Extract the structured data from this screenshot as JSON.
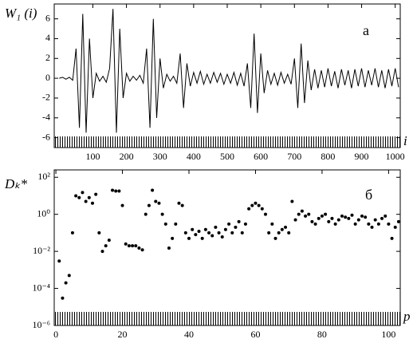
{
  "chart_data": [
    {
      "type": "line",
      "panel_label": "а",
      "ylabel": "W₁ (i)",
      "xlabel": "i",
      "color": "#000000",
      "x": [
        0,
        10,
        20,
        30,
        40,
        50,
        60,
        70,
        80,
        90,
        100,
        110,
        120,
        130,
        140,
        150,
        160,
        170,
        180,
        190,
        200,
        210,
        220,
        230,
        240,
        250,
        260,
        270,
        280,
        290,
        300,
        310,
        320,
        330,
        340,
        350,
        360,
        370,
        380,
        390,
        400,
        410,
        420,
        430,
        440,
        450,
        460,
        470,
        480,
        490,
        500,
        510,
        520,
        530,
        540,
        550,
        560,
        570,
        580,
        590,
        600,
        610,
        620,
        630,
        640,
        650,
        660,
        670,
        680,
        690,
        700,
        710,
        720,
        730,
        740,
        750,
        760,
        770,
        780,
        790,
        800,
        810,
        820,
        830,
        840,
        850,
        860,
        870,
        880,
        890,
        900,
        910,
        920,
        930,
        940,
        950,
        960,
        970,
        980,
        990,
        1000,
        1010
      ],
      "values": [
        0,
        0.1,
        -0.1,
        0.1,
        -0.2,
        3,
        -5,
        6.5,
        -5.5,
        4,
        -2,
        0.5,
        -0.3,
        0.2,
        -0.4,
        1,
        7,
        -5.5,
        5,
        -2,
        0.5,
        -0.3,
        0.2,
        -0.2,
        0.3,
        -0.5,
        3,
        -5,
        6,
        -4,
        2,
        -1,
        0.4,
        -0.3,
        0.2,
        -0.5,
        2.5,
        -3,
        1.5,
        -0.8,
        0.6,
        -0.5,
        0.7,
        -0.6,
        0.4,
        -0.5,
        0.6,
        -0.4,
        0.5,
        -0.6,
        0.4,
        -0.5,
        0.6,
        -0.7,
        0.5,
        -0.8,
        1.5,
        -3,
        4.5,
        -3.5,
        2.5,
        -1.5,
        0.8,
        -0.6,
        0.5,
        -0.7,
        0.6,
        -0.5,
        0.4,
        -0.6,
        2,
        -3,
        3.5,
        -2.5,
        1.8,
        -1.2,
        0.9,
        -1,
        0.8,
        -0.9,
        1,
        -0.8,
        0.7,
        -1,
        0.9,
        -0.7,
        0.8,
        -1,
        0.9,
        -0.8,
        1,
        -0.9,
        0.8,
        -0.7,
        1,
        -0.9,
        0.8,
        -1,
        0.9,
        -0.8,
        1,
        -0.9
      ],
      "xlim": [
        -15,
        1015
      ],
      "ylim": [
        -7,
        7.5
      ],
      "xticks": [
        100,
        200,
        300,
        400,
        500,
        600,
        700,
        800,
        900,
        1000
      ],
      "yticks": [
        -6,
        -4,
        -2,
        0,
        2,
        4,
        6
      ]
    },
    {
      "type": "scatter",
      "panel_label": "б",
      "ylabel": "Dₖ*",
      "xlabel": "p",
      "color": "#000000",
      "log_y": true,
      "x": [
        1,
        2,
        3,
        4,
        5,
        6,
        7,
        8,
        9,
        10,
        11,
        12,
        13,
        14,
        15,
        16,
        17,
        18,
        19,
        20,
        21,
        22,
        23,
        24,
        25,
        26,
        27,
        28,
        29,
        30,
        31,
        32,
        33,
        34,
        35,
        36,
        37,
        38,
        39,
        40,
        41,
        42,
        43,
        44,
        45,
        46,
        47,
        48,
        49,
        50,
        51,
        52,
        53,
        54,
        55,
        56,
        57,
        58,
        59,
        60,
        61,
        62,
        63,
        64,
        65,
        66,
        67,
        68,
        69,
        70,
        71,
        72,
        73,
        74,
        75,
        76,
        77,
        78,
        79,
        80,
        81,
        82,
        83,
        84,
        85,
        86,
        87,
        88,
        89,
        90,
        91,
        92,
        93,
        94,
        95,
        96,
        97,
        98,
        99,
        100,
        101,
        102,
        103
      ],
      "values": [
        0.003,
        3e-05,
        0.0002,
        0.0005,
        0.1,
        10,
        8,
        15,
        5,
        8,
        4,
        12,
        0.1,
        0.01,
        0.02,
        0.04,
        20,
        18,
        18,
        3,
        0.025,
        0.02,
        0.02,
        0.02,
        0.015,
        0.012,
        1,
        3,
        20,
        5,
        4,
        1,
        0.3,
        0.015,
        0.05,
        0.3,
        4,
        3,
        0.1,
        0.05,
        0.15,
        0.08,
        0.12,
        0.05,
        0.15,
        0.1,
        0.07,
        0.2,
        0.1,
        0.06,
        0.15,
        0.3,
        0.1,
        0.2,
        0.4,
        0.1,
        0.3,
        2,
        3,
        4,
        3,
        2,
        1,
        0.1,
        0.3,
        0.05,
        0.1,
        0.15,
        0.2,
        0.1,
        5,
        0.5,
        1,
        1.5,
        0.8,
        1,
        0.4,
        0.3,
        0.6,
        0.8,
        1,
        0.4,
        0.6,
        0.3,
        0.5,
        0.8,
        0.7,
        0.6,
        0.9,
        0.3,
        0.5,
        0.8,
        0.7,
        0.3,
        0.2,
        0.5,
        0.3,
        0.6,
        0.8,
        0.3,
        0.05,
        0.2,
        0.4
      ],
      "xlim": [
        -0.5,
        103.5
      ],
      "ylim": [
        1e-06,
        250
      ],
      "xticks": [
        0,
        20,
        40,
        60,
        80,
        100
      ],
      "yticks": [
        {
          "value": 1e-06,
          "label": "10⁻⁶"
        },
        {
          "value": 0.0001,
          "label": "10⁻⁴"
        },
        {
          "value": 0.01,
          "label": "10⁻²"
        },
        {
          "value": 1,
          "label": "10⁰"
        },
        {
          "value": 100,
          "label": "10²"
        }
      ]
    }
  ]
}
